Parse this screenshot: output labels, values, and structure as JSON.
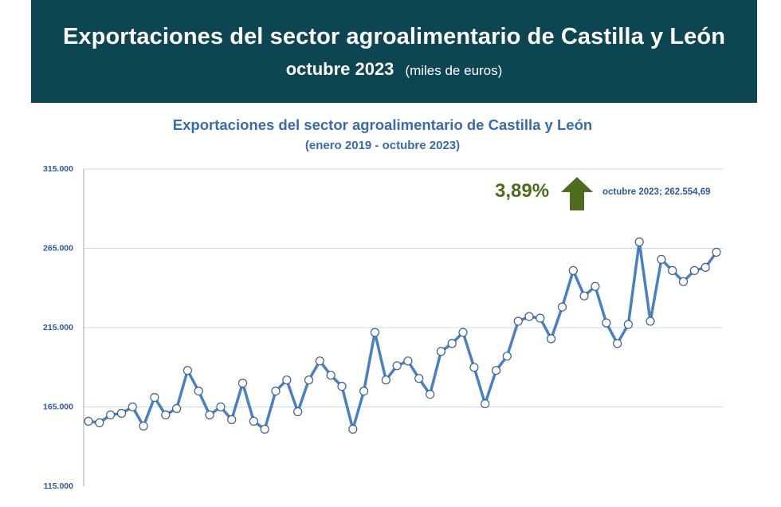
{
  "header": {
    "title": "Exportaciones del sector agroalimentario de Castilla y León",
    "period": "octubre 2023",
    "unit": "(miles de euros)"
  },
  "colors": {
    "banner": "#0e4553",
    "line": "#4a7fc1",
    "grid": "#c8d8ee",
    "arrow": "#4e6b1f"
  },
  "annotation": {
    "change_pct": "3,89%",
    "direction_icon": "up-arrow-icon",
    "last_point_label": "octubre 2023; 262.554,69"
  },
  "chart_data": {
    "type": "line",
    "title": "Exportaciones del sector agroalimentario de Castilla y León",
    "subtitle": "(enero 2019 - octubre 2023)",
    "xlabel": "",
    "ylabel": "",
    "ylim": [
      115000,
      315000
    ],
    "yticks": [
      115000,
      165000,
      215000,
      265000,
      315000
    ],
    "ytick_labels": [
      "115.000",
      "165.000",
      "215.000",
      "265.000",
      "315.000"
    ],
    "grid": true,
    "x_start": "enero 2019",
    "x_end": "octubre 2023",
    "series": [
      {
        "name": "Exportaciones",
        "values": [
          156000,
          155000,
          160000,
          161000,
          165000,
          153000,
          171000,
          160000,
          164000,
          188000,
          175000,
          160000,
          165000,
          157000,
          180000,
          156000,
          151000,
          175000,
          182000,
          162000,
          182000,
          194000,
          185000,
          178000,
          151000,
          175000,
          212000,
          182000,
          191000,
          194000,
          183000,
          173000,
          200000,
          205000,
          212000,
          190000,
          167000,
          188000,
          197000,
          219000,
          222000,
          221000,
          208000,
          228000,
          251000,
          235000,
          241000,
          218000,
          205000,
          217000,
          269000,
          219000,
          258000,
          251000,
          244000,
          251000,
          253000,
          262555
        ]
      }
    ]
  }
}
